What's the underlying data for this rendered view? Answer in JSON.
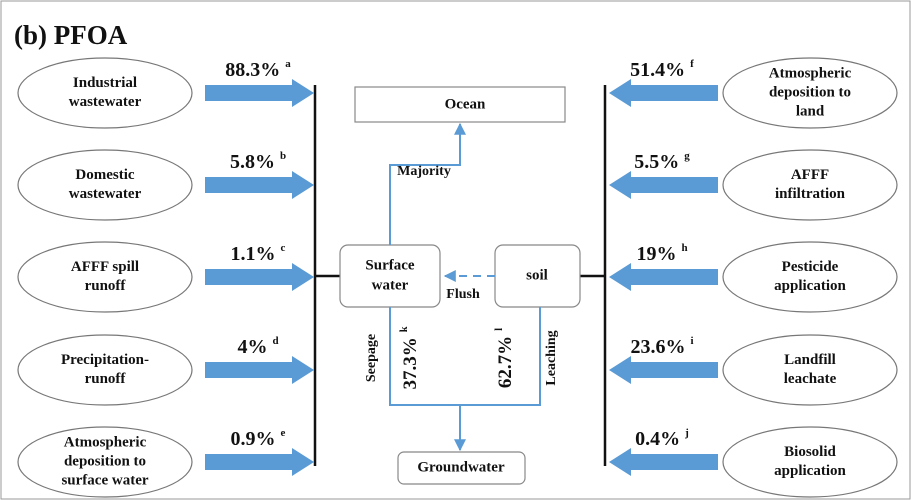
{
  "title": "(b) PFOA",
  "sources_left": [
    {
      "lines": [
        "Industrial",
        "wastewater"
      ],
      "value": "88.3%",
      "note": "a"
    },
    {
      "lines": [
        "Domestic",
        "wastewater"
      ],
      "value": "5.8%",
      "note": "b"
    },
    {
      "lines": [
        "AFFF spill",
        "runoff"
      ],
      "value": "1.1%",
      "note": "c"
    },
    {
      "lines": [
        "Precipitation-",
        "runoff"
      ],
      "value": "4%",
      "note": "d"
    },
    {
      "lines": [
        "Atmospheric",
        "deposition to",
        "surface water"
      ],
      "value": "0.9%",
      "note": "e"
    }
  ],
  "sources_right": [
    {
      "lines": [
        "Atmospheric",
        "deposition to",
        "land"
      ],
      "value": "51.4%",
      "note": "f"
    },
    {
      "lines": [
        "AFFF",
        "infiltration"
      ],
      "value": "5.5%",
      "note": "g"
    },
    {
      "lines": [
        "Pesticide",
        "application"
      ],
      "value": "19%",
      "note": "h"
    },
    {
      "lines": [
        "Landfill",
        "leachate"
      ],
      "value": "23.6%",
      "note": "i"
    },
    {
      "lines": [
        "Biosolid",
        "application"
      ],
      "value": "0.4%",
      "note": "j"
    }
  ],
  "nodes": {
    "ocean": "Ocean",
    "surface_water": [
      "Surface",
      "water"
    ],
    "soil": "soil",
    "groundwater": "Groundwater"
  },
  "flows": {
    "majority": "Majority",
    "flush": "Flush",
    "seepage": {
      "label": "Seepage",
      "value": "37.3%",
      "note": "k"
    },
    "leaching": {
      "label": "Leaching",
      "value": "62.7%",
      "note": "l"
    }
  }
}
